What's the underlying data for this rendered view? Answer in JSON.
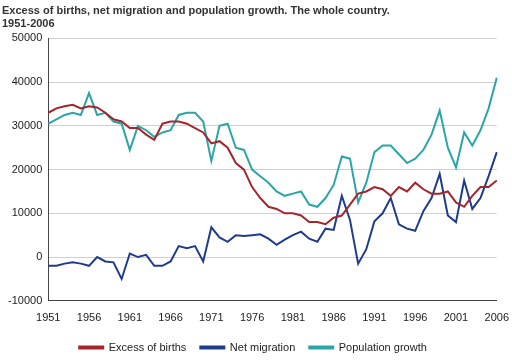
{
  "chart_data": {
    "type": "line",
    "title": [
      "Excess of births, net migration and population growth. The whole country.",
      "1951-2006"
    ],
    "categories": [
      "1951",
      null,
      null,
      null,
      null,
      "1956",
      null,
      null,
      null,
      null,
      "1961",
      null,
      null,
      null,
      null,
      "1966",
      null,
      null,
      null,
      null,
      "1971",
      null,
      null,
      null,
      null,
      "1976",
      null,
      null,
      null,
      null,
      "1981",
      null,
      null,
      null,
      null,
      "1986",
      null,
      null,
      null,
      null,
      "1991",
      null,
      null,
      null,
      null,
      "1996",
      null,
      null,
      null,
      null,
      "2001",
      null,
      null,
      null,
      null,
      "2006"
    ],
    "series": [
      {
        "name": "Excess of births",
        "color": "#a3262e",
        "values": [
          33000,
          34000,
          34500,
          34800,
          34000,
          34500,
          34200,
          33000,
          31500,
          31000,
          29500,
          29500,
          28000,
          26800,
          30500,
          31000,
          31000,
          30500,
          29500,
          28500,
          26000,
          26500,
          25000,
          21500,
          20000,
          16000,
          13500,
          11500,
          11000,
          10000,
          10000,
          9500,
          8000,
          8000,
          7500,
          9000,
          9500,
          12000,
          14500,
          15000,
          16000,
          15500,
          14000,
          16000,
          15000,
          17000,
          15500,
          14500,
          14500,
          15000,
          12500,
          11500,
          14000,
          16000,
          16000,
          17500
        ]
      },
      {
        "name": "Net migration",
        "color": "#1f3c8c",
        "values": [
          -2000,
          -2000,
          -1500,
          -1200,
          -1500,
          -2000,
          0,
          -1000,
          -1200,
          -5000,
          800,
          0,
          500,
          -2000,
          -2000,
          -1000,
          2500,
          2000,
          2500,
          -1000,
          6800,
          4500,
          3500,
          5000,
          4800,
          5000,
          5200,
          4200,
          2800,
          4000,
          5000,
          5800,
          4200,
          3500,
          6500,
          6200,
          14000,
          8500,
          -1500,
          1800,
          8200,
          10000,
          13500,
          7500,
          6500,
          6000,
          10500,
          13500,
          19000,
          9500,
          8000,
          17500,
          11000,
          13500,
          18500,
          24000
        ]
      },
      {
        "name": "Population growth",
        "color": "#2ba5a5",
        "values": [
          30500,
          31500,
          32500,
          33000,
          32500,
          37500,
          32500,
          33000,
          31000,
          30500,
          24500,
          30000,
          29000,
          27500,
          28500,
          29000,
          32500,
          33000,
          33000,
          31000,
          22000,
          30000,
          30500,
          25000,
          24500,
          20000,
          18500,
          17000,
          15000,
          14000,
          14500,
          15000,
          12000,
          11500,
          13500,
          16500,
          23000,
          22500,
          12500,
          17000,
          24000,
          25500,
          25500,
          23500,
          21500,
          22500,
          24500,
          28000,
          33500,
          25000,
          20500,
          28500,
          25500,
          29000,
          34000,
          41000
        ]
      }
    ],
    "ylim": [
      -10000,
      50000
    ],
    "yticks": [
      -10000,
      0,
      10000,
      20000,
      30000,
      40000,
      50000
    ],
    "grid": true,
    "legend": "bottom"
  }
}
